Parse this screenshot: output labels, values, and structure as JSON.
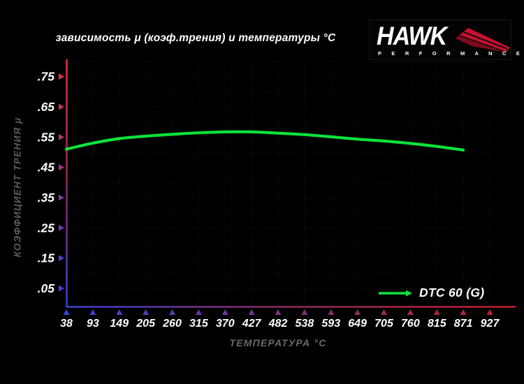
{
  "title": "зависимость μ (коэф.трения) и температуры °C",
  "logo": {
    "brand": "HAWK",
    "subbrand": "P E R F O R M A N C E",
    "accent": "#c8102e"
  },
  "chart_data": {
    "type": "line",
    "title": "зависимость μ (коэф.трения) и температуры °C",
    "xlabel": "ТЕМПЕРАТУРА °C",
    "ylabel": "КОЭФФИЦИЕНТ ТРЕНИЯ μ",
    "x_ticks": [
      38,
      93,
      149,
      205,
      260,
      315,
      370,
      427,
      482,
      538,
      593,
      649,
      705,
      760,
      815,
      871,
      927
    ],
    "y_ticks": [
      0.75,
      0.65,
      0.55,
      0.45,
      0.35,
      0.25,
      0.15,
      0.05
    ],
    "y_tick_labels": [
      ".75",
      ".65",
      ".55",
      ".45",
      ".35",
      ".25",
      ".15",
      ".05"
    ],
    "ylim": [
      0,
      0.8
    ],
    "grid": true,
    "grid_step_y": 0.05,
    "legend_position": "bottom-right",
    "series": [
      {
        "name": "DTC 60 (G)",
        "color": "#0ce23a",
        "x": [
          38,
          93,
          149,
          205,
          260,
          315,
          370,
          427,
          482,
          538,
          593,
          649,
          705,
          760,
          815,
          871
        ],
        "y": [
          0.51,
          0.53,
          0.545,
          0.553,
          0.559,
          0.564,
          0.567,
          0.567,
          0.563,
          0.558,
          0.551,
          0.543,
          0.537,
          0.529,
          0.519,
          0.507
        ]
      }
    ],
    "axis_gradient": {
      "y_top": "#e03245",
      "y_bottom": "#3a41d8",
      "x_left": "#3a41d8",
      "x_right": "#c3202f"
    },
    "grid_color": "#1e1e1e",
    "tick_label_color": "#ffffff"
  }
}
